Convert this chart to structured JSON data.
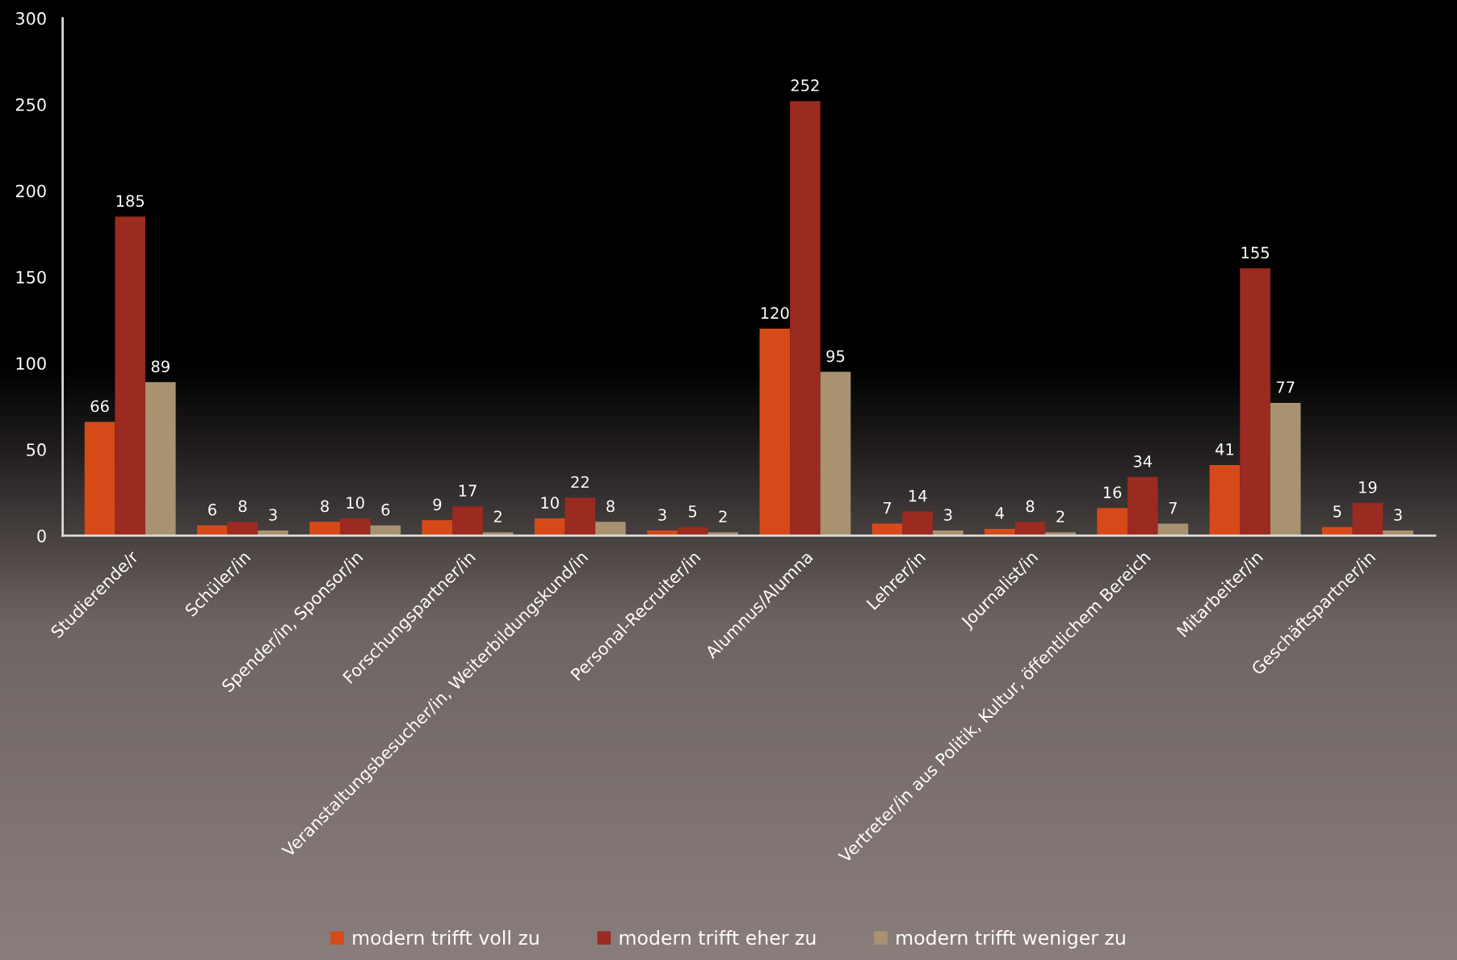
{
  "chart_data": {
    "type": "bar",
    "categories": [
      "Studierende/r",
      "Schüler/in",
      "Spender/in, Sponsor/in",
      "Forschungspartner/in",
      "Veranstaltungsbesucher/in, Weiterbildungskund/in",
      "Personal-Recruiter/in",
      "Alumnus/Alumna",
      "Lehrer/in",
      "Journalist/in",
      "Vertreter/in aus Politik, Kultur, öffentlichem Bereich",
      "Mitarbeiter/in",
      "Geschäftspartner/in"
    ],
    "series": [
      {
        "name": "modern trifft voll zu",
        "color": "#d64a1a",
        "values": [
          66,
          6,
          8,
          9,
          10,
          3,
          120,
          7,
          4,
          16,
          41,
          5
        ]
      },
      {
        "name": "modern trifft eher zu",
        "color": "#9b2a20",
        "values": [
          185,
          8,
          10,
          17,
          22,
          5,
          252,
          14,
          8,
          34,
          155,
          19
        ]
      },
      {
        "name": "modern trifft weniger zu",
        "color": "#a89270",
        "values": [
          89,
          3,
          6,
          2,
          8,
          2,
          95,
          3,
          2,
          7,
          77,
          3
        ]
      }
    ],
    "ylim": [
      0,
      300
    ],
    "yticks": [
      0,
      50,
      100,
      150,
      200,
      250,
      300
    ],
    "legend": "bottom",
    "data_labels": true
  }
}
